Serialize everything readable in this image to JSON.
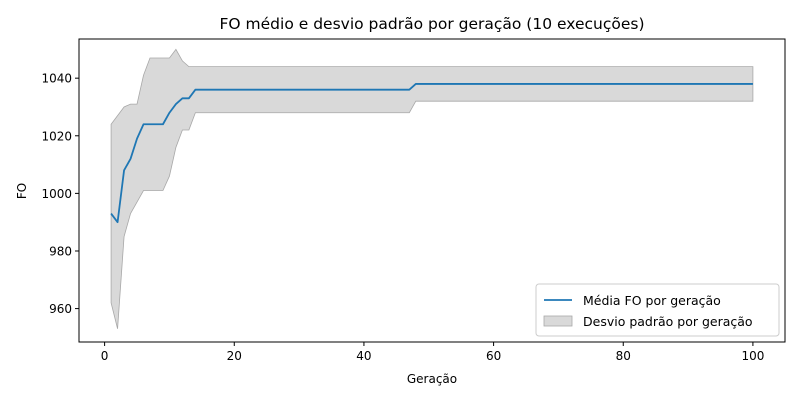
{
  "chart_data": {
    "type": "line",
    "title": "FO médio e desvio padrão por geração (10 execuções)",
    "xlabel": "Geração",
    "ylabel": "FO",
    "xlim": [
      -3.95,
      104.95
    ],
    "ylim": [
      948.4,
      1053.6
    ],
    "x_ticks": [
      0,
      20,
      40,
      60,
      80,
      100
    ],
    "y_ticks": [
      960,
      980,
      1000,
      1020,
      1040
    ],
    "grid": false,
    "legend_position": "lower-right",
    "series": [
      {
        "name": "Média FO por geração",
        "kind": "line",
        "color": "#1f77b4",
        "points": [
          [
            1,
            993
          ],
          [
            2,
            990
          ],
          [
            3,
            1008
          ],
          [
            4,
            1012
          ],
          [
            5,
            1019
          ],
          [
            6,
            1024
          ],
          [
            7,
            1024
          ],
          [
            8,
            1024
          ],
          [
            9,
            1024
          ],
          [
            10,
            1028
          ],
          [
            11,
            1031
          ],
          [
            12,
            1033
          ],
          [
            13,
            1033
          ],
          [
            14,
            1036
          ],
          [
            47,
            1036
          ],
          [
            48,
            1038
          ],
          [
            100,
            1038
          ]
        ]
      },
      {
        "name": "Desvio padrão por geração",
        "kind": "band",
        "color": "#bfbfbf",
        "upper": [
          [
            1,
            1024
          ],
          [
            2,
            1027
          ],
          [
            3,
            1030
          ],
          [
            4,
            1031
          ],
          [
            5,
            1031
          ],
          [
            6,
            1041
          ],
          [
            7,
            1047
          ],
          [
            8,
            1047
          ],
          [
            9,
            1047
          ],
          [
            10,
            1047
          ],
          [
            11,
            1050
          ],
          [
            12,
            1046
          ],
          [
            13,
            1044
          ],
          [
            14,
            1044
          ],
          [
            47,
            1044
          ],
          [
            48,
            1044
          ],
          [
            100,
            1044
          ]
        ],
        "lower": [
          [
            1,
            962
          ],
          [
            2,
            953
          ],
          [
            3,
            985
          ],
          [
            4,
            993
          ],
          [
            5,
            997
          ],
          [
            6,
            1001
          ],
          [
            7,
            1001
          ],
          [
            8,
            1001
          ],
          [
            9,
            1001
          ],
          [
            10,
            1006
          ],
          [
            11,
            1016
          ],
          [
            12,
            1022
          ],
          [
            13,
            1022
          ],
          [
            14,
            1028
          ],
          [
            47,
            1028
          ],
          [
            48,
            1032
          ],
          [
            100,
            1032
          ]
        ]
      }
    ]
  }
}
